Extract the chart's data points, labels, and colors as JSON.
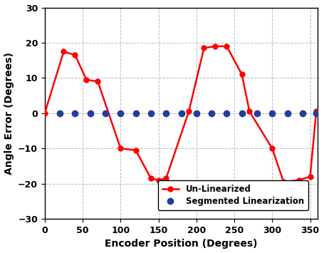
{
  "xlabel": "Encoder Position (Degrees)",
  "ylabel": "Angle Error (Degrees)",
  "xlim": [
    0,
    360
  ],
  "ylim": [
    -30,
    30
  ],
  "xticks": [
    0,
    50,
    100,
    150,
    200,
    250,
    300,
    350
  ],
  "yticks": [
    -30,
    -20,
    -10,
    0,
    10,
    20,
    30
  ],
  "red_x": [
    0,
    25,
    40,
    55,
    70,
    100,
    120,
    140,
    150,
    160,
    190,
    210,
    225,
    240,
    260,
    270,
    300,
    315,
    335,
    350,
    358
  ],
  "red_y": [
    0,
    17.5,
    16.5,
    9.5,
    9.0,
    -10.0,
    -10.5,
    -18.5,
    -19.0,
    -18.5,
    0.5,
    18.5,
    19.0,
    19.0,
    11.0,
    0.5,
    -10.0,
    -19.5,
    -19.0,
    -18.0,
    0.5
  ],
  "blue_x": [
    20,
    40,
    60,
    80,
    100,
    120,
    140,
    160,
    180,
    200,
    220,
    240,
    260,
    280,
    300,
    320,
    340,
    358
  ],
  "blue_y": [
    0,
    0,
    0,
    0,
    0,
    0,
    0,
    0,
    0,
    0,
    0,
    0,
    0,
    0,
    0,
    0,
    0,
    0
  ],
  "red_color": "#FF0000",
  "blue_color": "#1F3F99",
  "grid_color": "#BBBBBB",
  "background_color": "#FFFFFF",
  "legend_labels": [
    "Un-Linearized",
    "Segmented Linearization"
  ],
  "line_width": 1.8,
  "red_marker_size": 5,
  "blue_marker_size": 6,
  "axis_label_fontsize": 10,
  "tick_fontsize": 9,
  "legend_fontsize": 8.5
}
